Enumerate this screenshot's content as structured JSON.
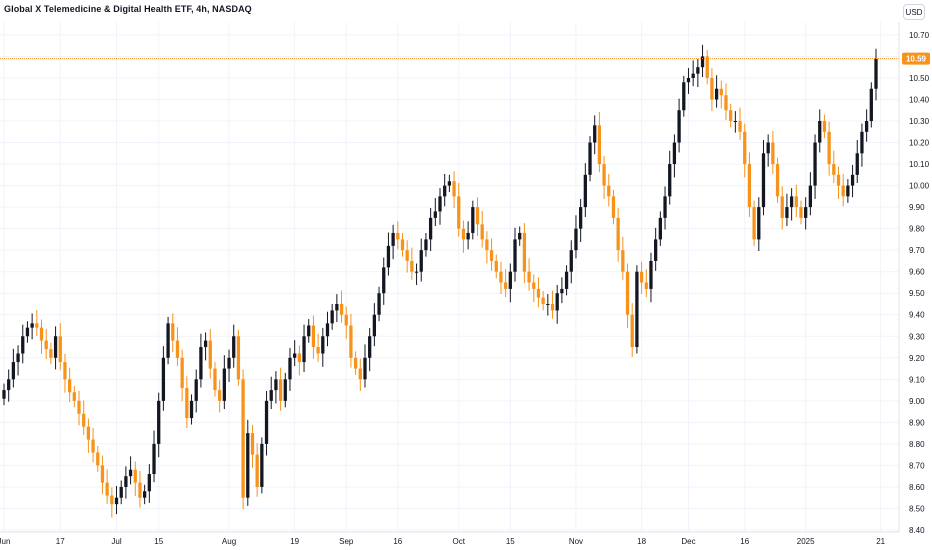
{
  "header": {
    "title": "Global X Telemedicine & Digital Health ETF, 4h, NASDAQ",
    "currency": "USD"
  },
  "colors": {
    "up": "#131722",
    "down": "#f7931a",
    "last_line": "#f7931a",
    "last_bg": "#f7931a"
  },
  "chart_data": {
    "type": "candlestick",
    "title": "Global X Telemedicine & Digital Health ETF, 4h, NASDAQ",
    "ylim": [
      8.4,
      10.76
    ],
    "y_ticks": [
      "10.70",
      "10.60",
      "10.50",
      "10.40",
      "10.30",
      "10.20",
      "10.10",
      "10.00",
      "9.90",
      "9.80",
      "9.70",
      "9.60",
      "9.50",
      "9.40",
      "9.30",
      "9.20",
      "9.10",
      "9.00",
      "8.90",
      "8.80",
      "8.70",
      "8.60",
      "8.50",
      "8.40"
    ],
    "x_ticks": [
      {
        "label": "Jun",
        "i": 0
      },
      {
        "label": "17",
        "i": 12
      },
      {
        "label": "Jul",
        "i": 24
      },
      {
        "label": "15",
        "i": 33
      },
      {
        "label": "Aug",
        "i": 48
      },
      {
        "label": "19",
        "i": 62
      },
      {
        "label": "Sep",
        "i": 73
      },
      {
        "label": "16",
        "i": 84
      },
      {
        "label": "Oct",
        "i": 97
      },
      {
        "label": "15",
        "i": 108
      },
      {
        "label": "Nov",
        "i": 122
      },
      {
        "label": "18",
        "i": 136
      },
      {
        "label": "Dec",
        "i": 146
      },
      {
        "label": "16",
        "i": 158
      },
      {
        "label": "2025",
        "i": 171
      },
      {
        "label": "21",
        "i": 187
      }
    ],
    "last_price": 10.59,
    "last_price_label": "10.59",
    "closes": [
      9.05,
      9.1,
      9.18,
      9.22,
      9.3,
      9.34,
      9.36,
      9.34,
      9.28,
      9.24,
      9.2,
      9.3,
      9.18,
      9.1,
      9.04,
      9.0,
      8.94,
      8.88,
      8.82,
      8.76,
      8.7,
      8.62,
      8.56,
      8.52,
      8.55,
      8.6,
      8.65,
      8.68,
      8.62,
      8.55,
      8.58,
      8.66,
      8.8,
      9.0,
      9.2,
      9.36,
      9.28,
      9.2,
      9.06,
      8.92,
      9.0,
      9.1,
      9.25,
      9.28,
      9.15,
      9.05,
      9.0,
      9.15,
      9.2,
      9.3,
      9.1,
      8.55,
      8.85,
      8.75,
      8.6,
      8.8,
      9.0,
      9.05,
      9.1,
      9.0,
      9.1,
      9.2,
      9.22,
      9.18,
      9.3,
      9.35,
      9.25,
      9.22,
      9.3,
      9.36,
      9.42,
      9.45,
      9.4,
      9.35,
      9.2,
      9.15,
      9.1,
      9.2,
      9.3,
      9.4,
      9.5,
      9.62,
      9.72,
      9.78,
      9.75,
      9.7,
      9.65,
      9.6,
      9.6,
      9.7,
      9.75,
      9.85,
      9.88,
      9.95,
      10.0,
      10.02,
      9.95,
      9.8,
      9.75,
      9.78,
      9.9,
      9.82,
      9.75,
      9.7,
      9.65,
      9.6,
      9.55,
      9.52,
      9.6,
      9.75,
      9.78,
      9.6,
      9.55,
      9.52,
      9.48,
      9.45,
      9.45,
      9.42,
      9.5,
      9.52,
      9.6,
      9.7,
      9.8,
      9.9,
      10.05,
      10.2,
      10.28,
      10.1,
      10.0,
      9.95,
      9.85,
      9.7,
      9.6,
      9.4,
      9.25,
      9.6,
      9.55,
      9.52,
      9.65,
      9.75,
      9.85,
      9.95,
      10.1,
      10.2,
      10.35,
      10.48,
      10.5,
      10.52,
      10.55,
      10.6,
      10.5,
      10.4,
      10.45,
      10.42,
      10.35,
      10.3,
      10.3,
      10.25,
      10.1,
      9.9,
      9.75,
      9.9,
      10.15,
      10.2,
      10.1,
      9.95,
      9.85,
      9.9,
      9.95,
      9.9,
      9.85,
      9.9,
      10.0,
      10.2,
      10.3,
      10.25,
      10.1,
      10.05,
      10.0,
      9.95,
      10.0,
      10.05,
      10.15,
      10.25,
      10.3,
      10.45,
      10.59
    ]
  }
}
